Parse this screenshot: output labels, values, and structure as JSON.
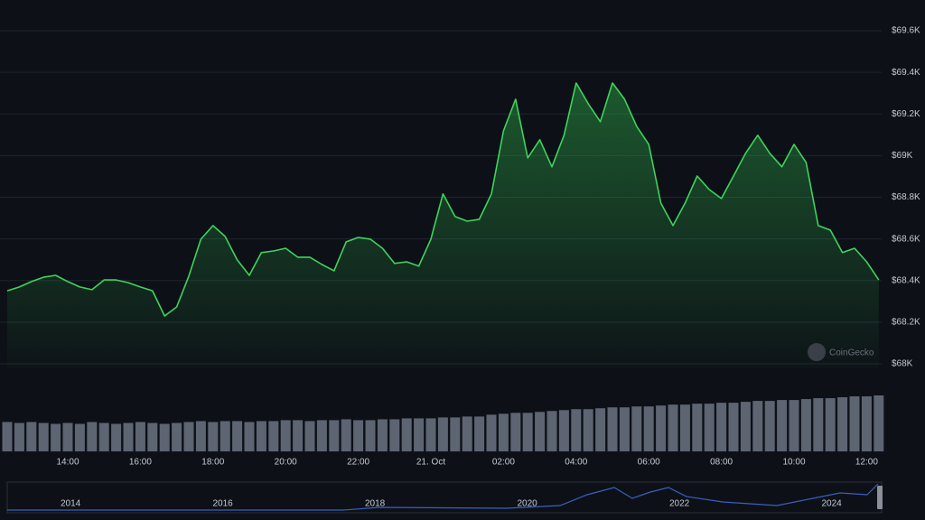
{
  "chart_data": {
    "type": "line",
    "categories": [
      null,
      null,
      null,
      null,
      null,
      "14:00",
      null,
      null,
      null,
      null,
      null,
      "16:00",
      null,
      null,
      null,
      null,
      null,
      "18:00",
      null,
      null,
      null,
      null,
      null,
      "20:00",
      null,
      null,
      null,
      null,
      null,
      "22:00",
      null,
      null,
      null,
      null,
      null,
      "21. Oct",
      null,
      null,
      null,
      null,
      null,
      "02:00",
      null,
      null,
      null,
      null,
      null,
      "04:00",
      null,
      null,
      null,
      null,
      null,
      "06:00",
      null,
      null,
      null,
      null,
      null,
      "08:00",
      null,
      null,
      null,
      null,
      null,
      "10:00",
      null,
      null,
      null,
      null,
      null,
      "12:00",
      null
    ],
    "series": [
      {
        "color": "#3fd35c",
        "values": [
          68351,
          68369,
          68395,
          68416,
          68425,
          68395,
          68369,
          68356,
          68403,
          68403,
          68390,
          68369,
          68351,
          68230,
          68273,
          68421,
          68599,
          68664,
          68612,
          68499,
          68425,
          68534,
          68542,
          68555,
          68512,
          68512,
          68477,
          68447,
          68586,
          68607,
          68599,
          68555,
          68482,
          68490,
          68469,
          68599,
          68816,
          68707,
          68685,
          68694,
          68816,
          69119,
          69271,
          68989,
          69076,
          68946,
          69098,
          69349,
          69249,
          69163,
          69349,
          69271,
          69141,
          69054,
          68772,
          68664,
          68772,
          68902,
          68837,
          68794,
          68902,
          69011,
          69098,
          69011,
          68946,
          69054,
          68967,
          68664,
          68642,
          68534,
          68555,
          68490,
          68403
        ]
      }
    ],
    "volume": {
      "color": "#5d6472",
      "values": [
        32,
        31,
        32,
        31,
        30,
        31,
        30,
        32,
        31,
        30,
        31,
        32,
        31,
        30,
        31,
        32,
        33,
        32,
        33,
        33,
        32,
        33,
        33,
        34,
        34,
        33,
        34,
        34,
        35,
        34,
        34,
        35,
        35,
        36,
        36,
        36,
        37,
        37,
        38,
        38,
        40,
        41,
        42,
        42,
        43,
        44,
        45,
        46,
        46,
        47,
        48,
        48,
        49,
        49,
        50,
        51,
        51,
        52,
        52,
        53,
        53,
        54,
        55,
        55,
        56,
        56,
        57,
        58,
        58,
        59,
        60,
        60,
        61
      ]
    },
    "ylim": [
      68000,
      69600
    ],
    "yticks": [
      {
        "value": 68000,
        "label": "$68K"
      },
      {
        "value": 68200,
        "label": "$68.2K"
      },
      {
        "value": 68400,
        "label": "$68.4K"
      },
      {
        "value": 68600,
        "label": "$68.6K"
      },
      {
        "value": 68800,
        "label": "$68.8K"
      },
      {
        "value": 69000,
        "label": "$69K"
      },
      {
        "value": 69200,
        "label": "$69.2K"
      },
      {
        "value": 69400,
        "label": "$69.4K"
      },
      {
        "value": 69600,
        "label": "$69.6K"
      }
    ],
    "grid": true,
    "watermark": "CoinGecko",
    "navigator": {
      "labels": [
        "2014",
        "2016",
        "2018",
        "2020",
        "2022",
        "2024"
      ]
    }
  }
}
